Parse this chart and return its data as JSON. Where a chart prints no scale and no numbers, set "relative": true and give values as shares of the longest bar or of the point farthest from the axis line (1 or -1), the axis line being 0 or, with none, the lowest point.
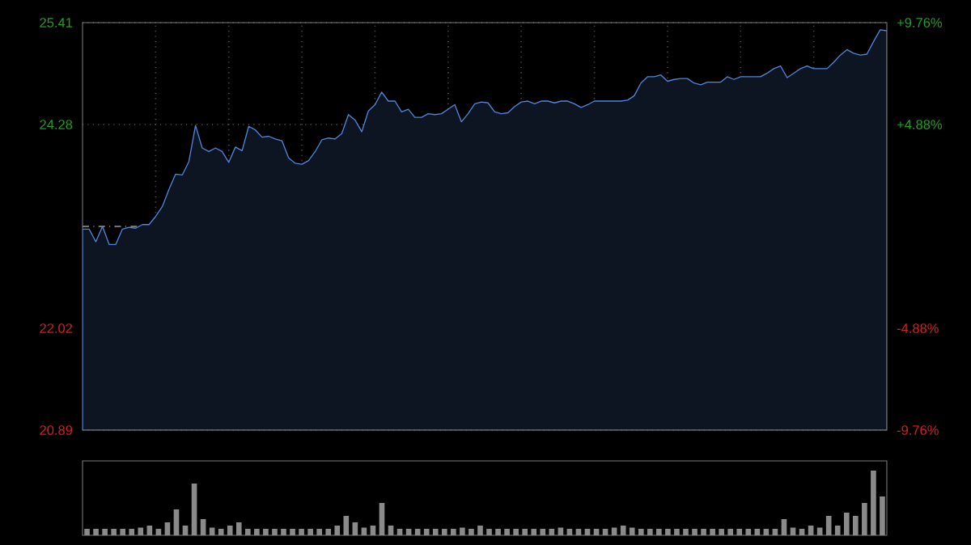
{
  "chart_data": [
    {
      "type": "area",
      "color": "#4f86d9",
      "grid": true,
      "tick_labels": "y",
      "ylim": [
        20.89,
        25.41
      ],
      "yticks": [
        20.89,
        22.02,
        24.28,
        25.41
      ],
      "y2lim": [
        -9.76,
        9.76
      ],
      "y2ticks": [
        {
          "value": -9.76,
          "label": "-9.76%"
        },
        {
          "value": -4.88,
          "label": "-4.88%"
        },
        {
          "value": 4.88,
          "label": "+4.88%"
        },
        {
          "value": 9.76,
          "label": "+9.76%"
        }
      ],
      "ref_lines": [
        {
          "axis": "y",
          "value": 23.15,
          "line_style": "dashed",
          "color": "#9a9a9a"
        }
      ],
      "categories": [
        null,
        null,
        null,
        null,
        null,
        null,
        null,
        null,
        null,
        null,
        null,
        null,
        null,
        null,
        null,
        null,
        null,
        null,
        null,
        null,
        null,
        null,
        null,
        null,
        null,
        null,
        null,
        null,
        null,
        null,
        null,
        null,
        null,
        null,
        null,
        null,
        null,
        null,
        null,
        null,
        null,
        null,
        null,
        null,
        null,
        null,
        null,
        null,
        null,
        null,
        null,
        null,
        null,
        null,
        null,
        null,
        null,
        null,
        null,
        null,
        null,
        null,
        null,
        null,
        null,
        null,
        null,
        null,
        null,
        null,
        null,
        null,
        null,
        null,
        null,
        null,
        null,
        null,
        null,
        null,
        null,
        null,
        null,
        null,
        null,
        null,
        null,
        null,
        null,
        null,
        null,
        null,
        null,
        null,
        null,
        null,
        null,
        null,
        null,
        null,
        null,
        null,
        null,
        null,
        null,
        null,
        null,
        null,
        null,
        null,
        null,
        null,
        null,
        null,
        null,
        null,
        null,
        null,
        null,
        null,
        null,
        null
      ],
      "values": [
        23.12,
        23.12,
        22.98,
        23.15,
        22.95,
        22.95,
        23.12,
        23.14,
        23.13,
        23.17,
        23.17,
        23.26,
        23.37,
        23.56,
        23.73,
        23.72,
        23.87,
        24.27,
        24.02,
        23.98,
        24.02,
        23.98,
        23.86,
        24.03,
        23.99,
        24.26,
        24.22,
        24.14,
        24.15,
        24.12,
        24.1,
        23.91,
        23.85,
        23.84,
        23.88,
        23.98,
        24.11,
        24.13,
        24.12,
        24.18,
        24.39,
        24.33,
        24.2,
        24.43,
        24.5,
        24.64,
        24.54,
        24.54,
        24.42,
        24.45,
        24.36,
        24.36,
        24.4,
        24.39,
        24.4,
        24.45,
        24.5,
        24.31,
        24.4,
        24.51,
        24.53,
        24.52,
        24.42,
        24.4,
        24.41,
        24.48,
        24.53,
        24.54,
        24.51,
        24.54,
        24.54,
        24.52,
        24.54,
        24.54,
        24.51,
        24.47,
        24.5,
        24.54,
        24.54,
        24.54,
        24.54,
        24.54,
        24.55,
        24.6,
        24.74,
        24.81,
        24.81,
        24.83,
        24.76,
        24.78,
        24.79,
        24.79,
        24.74,
        24.72,
        24.75,
        24.75,
        24.75,
        24.81,
        24.78,
        24.81,
        24.81,
        24.81,
        24.81,
        24.85,
        24.9,
        24.93,
        24.8,
        24.85,
        24.9,
        24.93,
        24.9,
        24.9,
        24.9,
        24.97,
        25.05,
        25.11,
        25.07,
        25.05,
        25.06,
        25.2,
        25.33,
        25.32
      ]
    },
    {
      "type": "bar",
      "relative": true,
      "color": "#8a8a8a",
      "categories": [
        null,
        null,
        null,
        null,
        null,
        null,
        null,
        null,
        null,
        null,
        null,
        null,
        null,
        null,
        null,
        null,
        null,
        null,
        null,
        null,
        null,
        null,
        null,
        null,
        null,
        null,
        null,
        null,
        null,
        null,
        null,
        null,
        null,
        null,
        null,
        null,
        null,
        null,
        null,
        null,
        null,
        null,
        null,
        null,
        null,
        null,
        null,
        null,
        null,
        null,
        null,
        null,
        null,
        null,
        null,
        null,
        null,
        null,
        null,
        null,
        null,
        null,
        null,
        null,
        null,
        null,
        null,
        null,
        null,
        null,
        null,
        null,
        null,
        null,
        null,
        null,
        null,
        null,
        null,
        null,
        null,
        null,
        null,
        null,
        null,
        null,
        null,
        null,
        null,
        null
      ],
      "values": [
        0.1,
        0.1,
        0.1,
        0.1,
        0.1,
        0.1,
        0.12,
        0.15,
        0.1,
        0.2,
        0.4,
        0.15,
        0.8,
        0.25,
        0.12,
        0.1,
        0.15,
        0.2,
        0.1,
        0.1,
        0.1,
        0.1,
        0.1,
        0.1,
        0.1,
        0.1,
        0.1,
        0.1,
        0.15,
        0.3,
        0.2,
        0.12,
        0.15,
        0.5,
        0.15,
        0.1,
        0.1,
        0.1,
        0.1,
        0.1,
        0.1,
        0.1,
        0.12,
        0.1,
        0.15,
        0.1,
        0.1,
        0.1,
        0.1,
        0.1,
        0.1,
        0.1,
        0.1,
        0.12,
        0.1,
        0.1,
        0.1,
        0.1,
        0.1,
        0.12,
        0.15,
        0.12,
        0.1,
        0.1,
        0.1,
        0.1,
        0.1,
        0.1,
        0.1,
        0.1,
        0.1,
        0.1,
        0.1,
        0.1,
        0.1,
        0.1,
        0.1,
        0.1,
        0.25,
        0.12,
        0.1,
        0.15,
        0.12,
        0.3,
        0.15,
        0.35,
        0.3,
        0.5,
        1.0,
        0.6
      ]
    }
  ]
}
